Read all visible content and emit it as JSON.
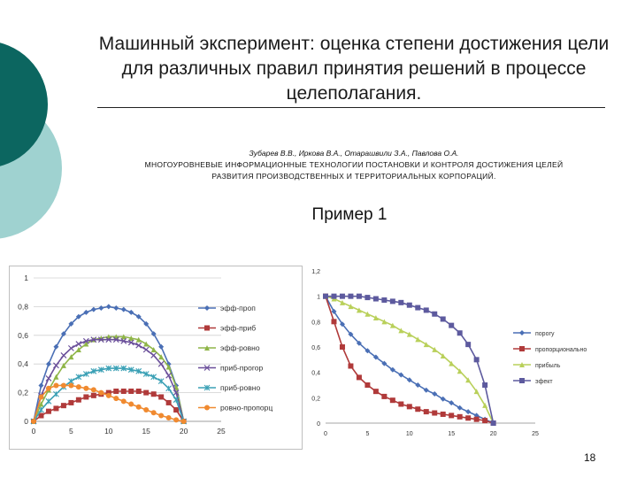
{
  "slide": {
    "title": "Машинный эксперимент: оценка степени достижения цели для различных правил принятия решений в процессе целеполагания.",
    "authors": "Зубарев В.В., Иркова В.А., Отарашвили З.А., Павлова О.А.",
    "source_title": "МНОГОУРОВНЕВЫЕ ИНФОРМАЦИОННЫЕ ТЕХНОЛОГИИ ПОСТАНОВКИ И КОНТРОЛЯ ДОСТИЖЕНИЯ ЦЕЛЕЙ РАЗВИТИЯ ПРОИЗВОДСТВЕННЫХ И ТЕРРИТОРИАЛЬНЫХ КОРПОРАЦИЙ.",
    "subtitle": "Пример 1",
    "page_number": "18",
    "colors": {
      "dark_teal": "#0c6660",
      "light_teal": "#9fd2d0"
    }
  },
  "chart_data": [
    {
      "type": "line",
      "xlim": [
        0,
        25
      ],
      "ylim": [
        0,
        1
      ],
      "xticks": [
        "0",
        "5",
        "10",
        "15",
        "20",
        "25"
      ],
      "yticks": [
        "0",
        "0,2",
        "0,4",
        "0,6",
        "0,8",
        "1"
      ],
      "grid": true,
      "legend": "right",
      "x": [
        0,
        1,
        2,
        3,
        4,
        5,
        6,
        7,
        8,
        9,
        10,
        11,
        12,
        13,
        14,
        15,
        16,
        17,
        18,
        19,
        20
      ],
      "series": [
        {
          "name": "эфф-проп",
          "color": "#4a6fb5",
          "marker": "diamond",
          "values": [
            0,
            0.25,
            0.4,
            0.52,
            0.61,
            0.68,
            0.73,
            0.76,
            0.78,
            0.79,
            0.8,
            0.79,
            0.78,
            0.76,
            0.73,
            0.68,
            0.61,
            0.52,
            0.4,
            0.25,
            0
          ]
        },
        {
          "name": "эфф-приб",
          "color": "#b03a3a",
          "marker": "square",
          "values": [
            0,
            0.04,
            0.07,
            0.09,
            0.11,
            0.13,
            0.15,
            0.17,
            0.18,
            0.19,
            0.2,
            0.21,
            0.21,
            0.21,
            0.21,
            0.2,
            0.19,
            0.17,
            0.13,
            0.08,
            0
          ]
        },
        {
          "name": "эфф-ровно",
          "color": "#8fb548",
          "marker": "triangle",
          "values": [
            0,
            0.12,
            0.22,
            0.31,
            0.39,
            0.45,
            0.5,
            0.54,
            0.57,
            0.58,
            0.59,
            0.59,
            0.59,
            0.58,
            0.57,
            0.54,
            0.5,
            0.45,
            0.38,
            0.24,
            0
          ]
        },
        {
          "name": "приб-прогор",
          "color": "#6a4f9a",
          "marker": "x",
          "values": [
            0,
            0.18,
            0.3,
            0.39,
            0.46,
            0.51,
            0.54,
            0.56,
            0.57,
            0.57,
            0.57,
            0.57,
            0.56,
            0.55,
            0.53,
            0.5,
            0.46,
            0.4,
            0.32,
            0.2,
            0
          ]
        },
        {
          "name": "приб-ровно",
          "color": "#3aa0b5",
          "marker": "star",
          "values": [
            0,
            0.08,
            0.14,
            0.19,
            0.24,
            0.28,
            0.31,
            0.33,
            0.35,
            0.36,
            0.37,
            0.37,
            0.37,
            0.36,
            0.35,
            0.33,
            0.31,
            0.28,
            0.23,
            0.15,
            0
          ]
        },
        {
          "name": "ровно-пропорц",
          "color": "#f08a30",
          "marker": "circle",
          "values": [
            0,
            0.17,
            0.23,
            0.25,
            0.25,
            0.25,
            0.24,
            0.23,
            0.22,
            0.2,
            0.18,
            0.16,
            0.14,
            0.12,
            0.1,
            0.08,
            0.06,
            0.04,
            0.025,
            0.01,
            0
          ]
        }
      ]
    },
    {
      "type": "line",
      "xlim": [
        0,
        25
      ],
      "ylim": [
        0,
        1.2
      ],
      "xticks": [
        "0",
        "5",
        "10",
        "15",
        "20",
        "25"
      ],
      "yticks": [
        "0",
        "0,2",
        "0,4",
        "0,6",
        "0,8",
        "1",
        "1,2"
      ],
      "grid": false,
      "legend": "right",
      "x": [
        0,
        1,
        2,
        3,
        4,
        5,
        6,
        7,
        8,
        9,
        10,
        11,
        12,
        13,
        14,
        15,
        16,
        17,
        18,
        19,
        20
      ],
      "series": [
        {
          "name": "порогу",
          "color": "#4a6fb5",
          "marker": "diamond",
          "values": [
            1,
            0.88,
            0.78,
            0.7,
            0.63,
            0.57,
            0.52,
            0.47,
            0.42,
            0.38,
            0.34,
            0.3,
            0.26,
            0.23,
            0.19,
            0.16,
            0.12,
            0.09,
            0.06,
            0.03,
            0
          ]
        },
        {
          "name": "пропорционально",
          "color": "#b03a3a",
          "marker": "square",
          "values": [
            1,
            0.8,
            0.6,
            0.45,
            0.36,
            0.3,
            0.25,
            0.21,
            0.18,
            0.15,
            0.13,
            0.11,
            0.09,
            0.08,
            0.07,
            0.06,
            0.05,
            0.04,
            0.03,
            0.02,
            0
          ]
        },
        {
          "name": "прибыль",
          "color": "#b9d05a",
          "marker": "triangle",
          "values": [
            1,
            0.98,
            0.95,
            0.92,
            0.89,
            0.86,
            0.83,
            0.8,
            0.77,
            0.73,
            0.7,
            0.66,
            0.62,
            0.58,
            0.53,
            0.47,
            0.41,
            0.34,
            0.25,
            0.14,
            0
          ]
        },
        {
          "name": "эфект",
          "color": "#5d5a9e",
          "marker": "square",
          "values": [
            1,
            1,
            1,
            1,
            1,
            0.99,
            0.98,
            0.97,
            0.96,
            0.95,
            0.93,
            0.91,
            0.89,
            0.86,
            0.82,
            0.77,
            0.71,
            0.62,
            0.5,
            0.3,
            0
          ]
        }
      ]
    }
  ]
}
